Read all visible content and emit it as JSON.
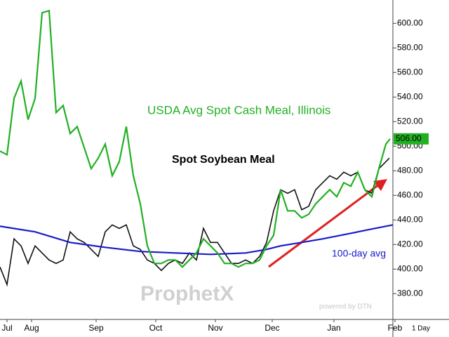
{
  "chart_data": {
    "type": "line",
    "xlim": [
      0,
      56
    ],
    "ylim": [
      359,
      619
    ],
    "yticks": [
      380,
      400,
      420,
      440,
      460,
      480,
      500,
      520,
      540,
      560,
      580,
      600
    ],
    "ytick_labels": [
      "380.00",
      "400.00",
      "420.00",
      "440.00",
      "460.00",
      "480.00",
      "500.00",
      "520.00",
      "540.00",
      "560.00",
      "580.00",
      "600.00"
    ],
    "xticks": [
      {
        "value": 1,
        "label": "Jul"
      },
      {
        "value": 4.5,
        "label": "Aug"
      },
      {
        "value": 13.7,
        "label": "Sep"
      },
      {
        "value": 22.2,
        "label": "Oct"
      },
      {
        "value": 30.7,
        "label": "Nov"
      },
      {
        "value": 38.8,
        "label": "Dec"
      },
      {
        "value": 47.6,
        "label": "Jan"
      },
      {
        "value": 56.3,
        "label": "Feb"
      }
    ],
    "grid": false,
    "interval": "1 Day",
    "watermark": "ProphetX",
    "watermark_sub": "powered by DTN",
    "price_marker": {
      "value": 506,
      "label": "506.00"
    },
    "series": [
      {
        "name": "USDA Avg Spot Cash Meal, Illinois",
        "color": "#22b022",
        "x": [
          0,
          1,
          2,
          3,
          4,
          5,
          6,
          7,
          8,
          9,
          10,
          11,
          12,
          13,
          14,
          15,
          16,
          17,
          18,
          19,
          20,
          21,
          22,
          23,
          24,
          25,
          26,
          27,
          28,
          29,
          30,
          31,
          32,
          33,
          34,
          35,
          36,
          37,
          38,
          39,
          40,
          41,
          42,
          43,
          44,
          45,
          46,
          47,
          48,
          49,
          50,
          51,
          52,
          53,
          54,
          55,
          55.6
        ],
        "values": [
          496.0,
          493.1,
          538.9,
          553.1,
          521.7,
          538.9,
          608.6,
          610.3,
          527.4,
          533.1,
          510.3,
          516.0,
          498.9,
          481.7,
          490.3,
          501.7,
          476.0,
          487.4,
          516.0,
          476.0,
          453.1,
          418.9,
          404.6,
          404.6,
          407.4,
          407.4,
          401.7,
          407.4,
          413.1,
          424.6,
          418.9,
          413.1,
          404.6,
          404.6,
          401.7,
          404.6,
          404.6,
          407.4,
          418.9,
          427.4,
          464.6,
          447.4,
          447.4,
          441.7,
          444.6,
          453.1,
          458.9,
          464.6,
          458.9,
          470.3,
          467.4,
          478.9,
          464.6,
          458.9,
          481.7,
          501.7,
          506
        ]
      },
      {
        "name": "Spot Soybean Meal",
        "color": "#111111",
        "x": [
          0,
          1,
          2,
          3,
          4,
          5,
          6,
          7,
          8,
          9,
          10,
          11,
          12,
          13,
          14,
          15,
          16,
          17,
          18,
          19,
          20,
          21,
          22,
          23,
          24,
          25,
          26,
          27,
          28,
          29,
          30,
          31,
          32,
          33,
          34,
          35,
          36,
          37,
          38,
          39,
          40,
          41,
          42,
          43,
          44,
          45,
          46,
          47,
          48,
          49,
          50,
          51,
          52,
          53,
          54,
          55,
          55.5
        ],
        "values": [
          401.7,
          387.4,
          424.6,
          418.9,
          404.6,
          418.9,
          413.1,
          407.4,
          404.6,
          407.4,
          430.3,
          424.6,
          421.7,
          416.0,
          410.3,
          430.3,
          436.0,
          433.1,
          436.0,
          418.9,
          416.0,
          407.4,
          404.6,
          398.9,
          404.6,
          407.4,
          404.6,
          413.1,
          407.4,
          433.1,
          421.7,
          421.7,
          413.1,
          404.6,
          404.6,
          407.4,
          404.6,
          410.3,
          421.7,
          447.4,
          464.6,
          461.7,
          464.6,
          448.3,
          451.1,
          464.6,
          470.3,
          476.0,
          473.1,
          478.9,
          476.0,
          478.9,
          464.6,
          461.7,
          481.7,
          487.4,
          490.3
        ]
      },
      {
        "name": "100-day avg",
        "color": "#1a1acc",
        "x": [
          0,
          5,
          10,
          15,
          20,
          25,
          30,
          35,
          38,
          40,
          43,
          46,
          50,
          53,
          56
        ],
        "values": [
          434.9,
          430.3,
          421.7,
          417.7,
          414.3,
          413.1,
          412.0,
          413.1,
          416.0,
          418.9,
          421.7,
          424.6,
          429.1,
          432.6,
          436.0
        ]
      }
    ]
  }
}
